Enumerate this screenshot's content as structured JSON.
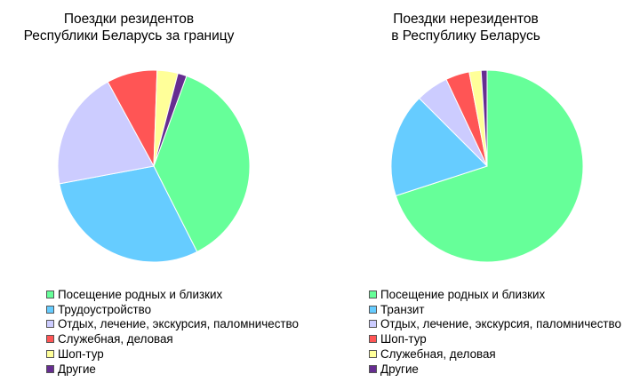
{
  "chart_data": [
    {
      "type": "pie",
      "title": [
        "Поездки резидентов",
        "Республики Беларусь за границу"
      ],
      "slices": [
        {
          "label": "Посещение родных и близких",
          "value": 37.0,
          "color": "#66ff99"
        },
        {
          "label": "Трудоустройство",
          "value": 29.5,
          "color": "#66ccff"
        },
        {
          "label": "Отдых, лечение, экскурсия, паломничество",
          "value": 20.0,
          "color": "#ccccff"
        },
        {
          "label": "Служебная, деловая",
          "value": 8.5,
          "color": "#ff5555"
        },
        {
          "label": "Шоп-тур",
          "value": 3.5,
          "color": "#ffff99"
        },
        {
          "label": "Другие",
          "value": 1.5,
          "color": "#662d91"
        }
      ],
      "start_angle_deg": 20,
      "legend_position": "bottom"
    },
    {
      "type": "pie",
      "title": [
        "Поездки нерезидентов",
        "в Республику Беларусь"
      ],
      "slices": [
        {
          "label": "Посещение родных и близких",
          "value": 70.0,
          "color": "#66ff99"
        },
        {
          "label": "Транзит",
          "value": 17.5,
          "color": "#66ccff"
        },
        {
          "label": "Отдых, лечение, экскурсия, паломничество",
          "value": 5.5,
          "color": "#ccccff"
        },
        {
          "label": "Шоп-тур",
          "value": 4.0,
          "color": "#ff5555"
        },
        {
          "label": "Служебная, деловая",
          "value": 2.0,
          "color": "#ffff99"
        },
        {
          "label": "Другие",
          "value": 1.0,
          "color": "#662d91"
        }
      ],
      "start_angle_deg": 0,
      "legend_position": "bottom"
    }
  ]
}
